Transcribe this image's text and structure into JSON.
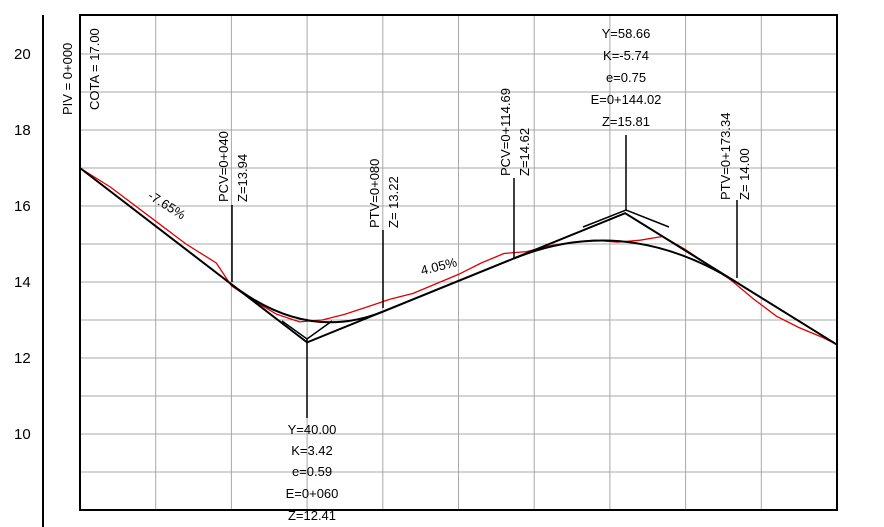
{
  "chart_data": {
    "type": "line",
    "title": "",
    "xlabel": "",
    "ylabel": "",
    "xlim": [
      0,
      200
    ],
    "ylim": [
      8,
      21
    ],
    "grid": true,
    "y_ticks": [
      "20",
      "18",
      "16",
      "14",
      "12",
      "10"
    ],
    "colors": {
      "tangent": "#000000",
      "terrain": "#e00000",
      "grid": "#a8a8a8"
    },
    "tangent_series": {
      "x": [
        0,
        60,
        144.02,
        200
      ],
      "y": [
        17.0,
        12.41,
        15.81,
        12.35
      ]
    },
    "curve_series": [
      {
        "x": [
          40,
          60,
          80
        ],
        "y": [
          13.94,
          12.41,
          13.22
        ],
        "type": "sag"
      },
      {
        "x": [
          114.69,
          144.02,
          173.34
        ],
        "y": [
          14.62,
          15.81,
          14.0
        ],
        "type": "crest"
      }
    ],
    "terrain_series": {
      "x": [
        0,
        8,
        20,
        28,
        36,
        40,
        46,
        52,
        58,
        64,
        70,
        76,
        82,
        88,
        94,
        100,
        106,
        112,
        118,
        124,
        130,
        136,
        142,
        148,
        154,
        160,
        166,
        172,
        178,
        184,
        190,
        196,
        200
      ],
      "y": [
        17.0,
        16.5,
        15.6,
        15.0,
        14.5,
        13.9,
        13.5,
        13.15,
        12.95,
        13.0,
        13.15,
        13.35,
        13.55,
        13.7,
        13.95,
        14.2,
        14.5,
        14.75,
        14.8,
        14.95,
        15.05,
        15.1,
        15.05,
        15.1,
        15.2,
        14.85,
        14.45,
        14.05,
        13.55,
        13.1,
        12.8,
        12.55,
        12.35
      ]
    },
    "grades": [
      "-7.65%",
      "4.05%"
    ]
  },
  "piv_start": {
    "station": "PIV = 0+000",
    "elevation": "COTA =  17.00"
  },
  "points": {
    "pcv1": {
      "station": "PCV=0+040",
      "elev": "Z=13.94"
    },
    "ptv1": {
      "station": "PTV=0+080",
      "elev": "Z= 13.22"
    },
    "pcv2": {
      "station": "PCV=0+114.69",
      "elev": "Z=14.62"
    },
    "ptv2": {
      "station": "PTV=0+173.34",
      "elev": "Z= 14.00"
    }
  },
  "curve1": {
    "y": "Y=40.00",
    "k": "K=3.42",
    "e": "e=0.59",
    "station": "E=0+060",
    "z": "Z=12.41"
  },
  "curve2": {
    "y": "Y=58.66",
    "k": "K=-5.74",
    "e": "e=0.75",
    "station": "E=0+144.02",
    "z": "Z=15.81"
  }
}
